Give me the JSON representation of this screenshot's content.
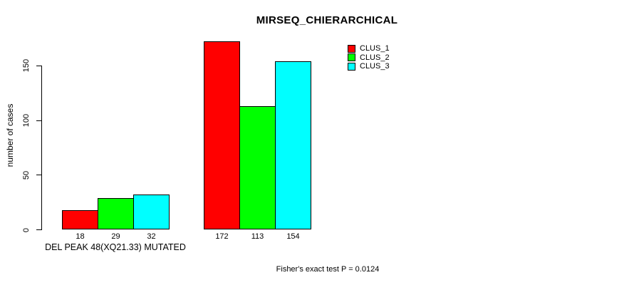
{
  "chart_data": {
    "type": "bar",
    "title": "MIRSEQ_CHIERARCHICAL",
    "ylabel": "number of cases",
    "xlabel": "",
    "categories": [
      "DEL PEAK 48(XQ21.33) MUTATED",
      ""
    ],
    "series": [
      {
        "name": "CLUS_1",
        "color": "#ff0000",
        "values": [
          18,
          172
        ]
      },
      {
        "name": "CLUS_2",
        "color": "#00ff00",
        "values": [
          29,
          113
        ]
      },
      {
        "name": "CLUS_3",
        "color": "#00ffff",
        "values": [
          32,
          154
        ]
      }
    ],
    "yticks": [
      0,
      50,
      100,
      150
    ],
    "ylim": [
      0,
      175
    ],
    "grid": false,
    "bar_labels_shown": true,
    "legend_position": "top-right",
    "legend_entries": [
      "CLUS_1",
      "CLUS_2",
      "CLUS_3"
    ],
    "annotation": "Fisher's exact test P = 0.0124",
    "axis_color": "#000000",
    "background_color": "#ffffff"
  }
}
